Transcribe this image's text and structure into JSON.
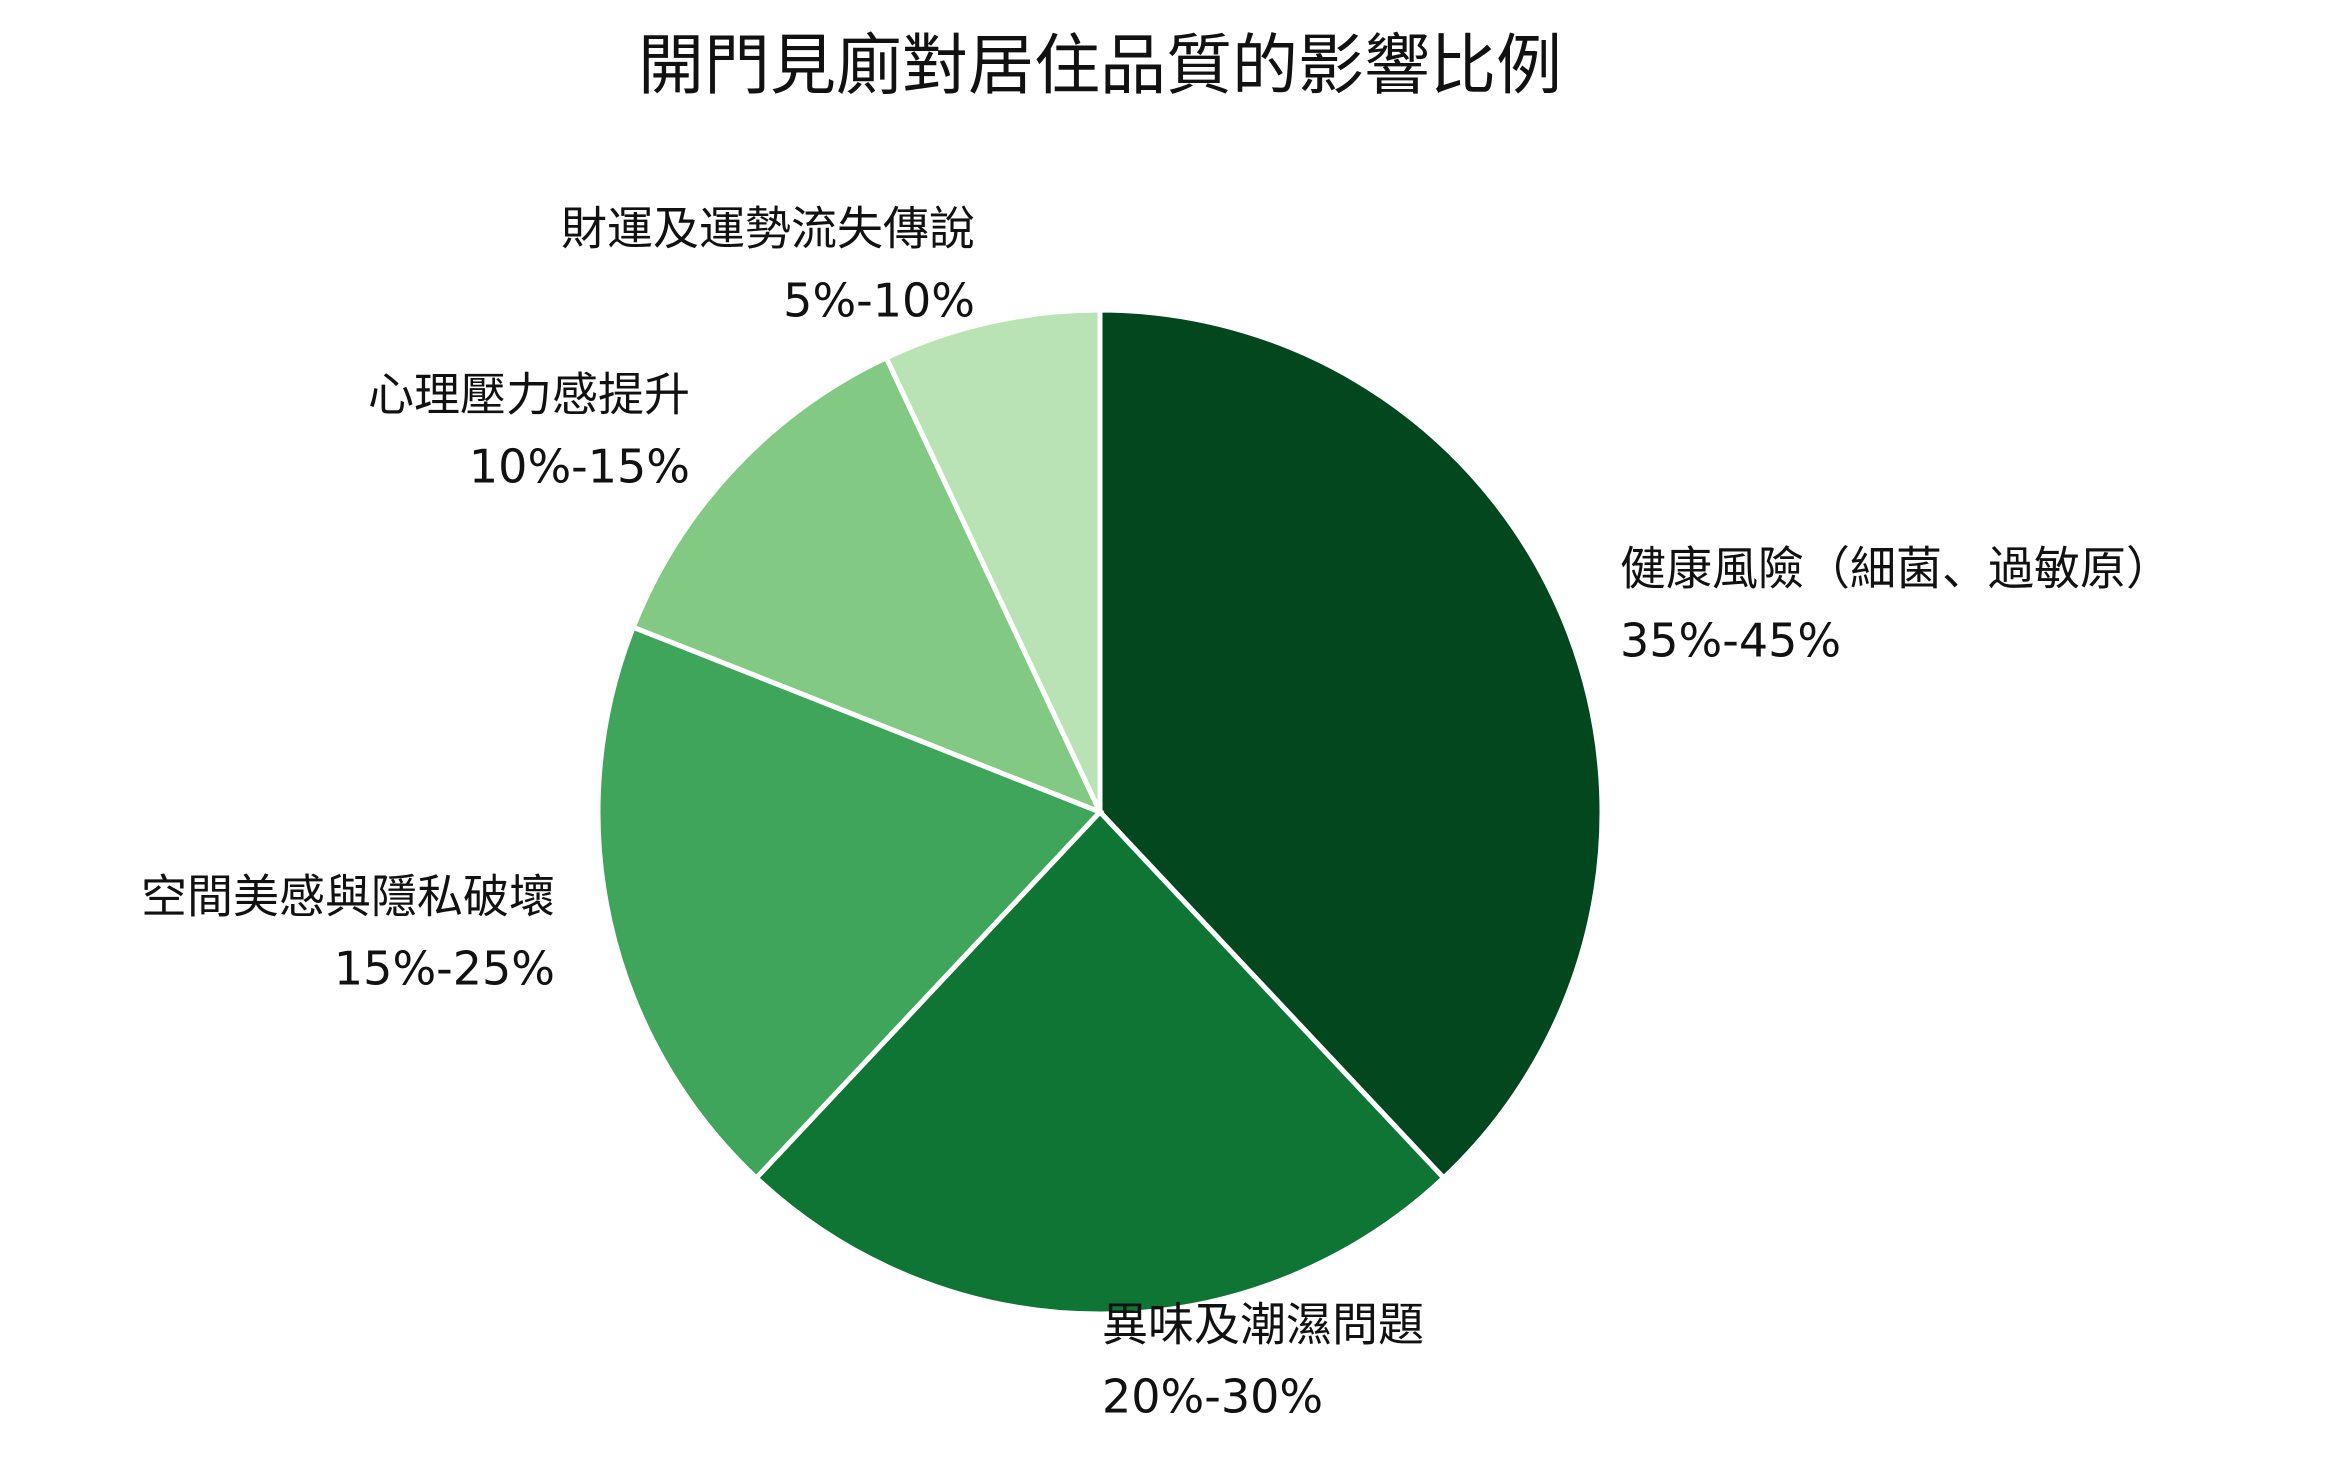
{
  "chart_data": {
    "type": "pie",
    "title": "開門見廁對居住品質的影響比例",
    "categories": [
      "健康風險（細菌、過敏原）",
      "異味及潮濕問題",
      "空間美感與隱私破壞",
      "心理壓力感提升",
      "財運及運勢流失傳說"
    ],
    "values": [
      38,
      24,
      19,
      12,
      7
    ],
    "value_labels": [
      "35%-45%",
      "20%-30%",
      "15%-25%",
      "10%-15%",
      "5%-10%"
    ],
    "colors": [
      "#03471f",
      "#0e7535",
      "#3ea55b",
      "#82c983",
      "#b9e3b5"
    ]
  }
}
